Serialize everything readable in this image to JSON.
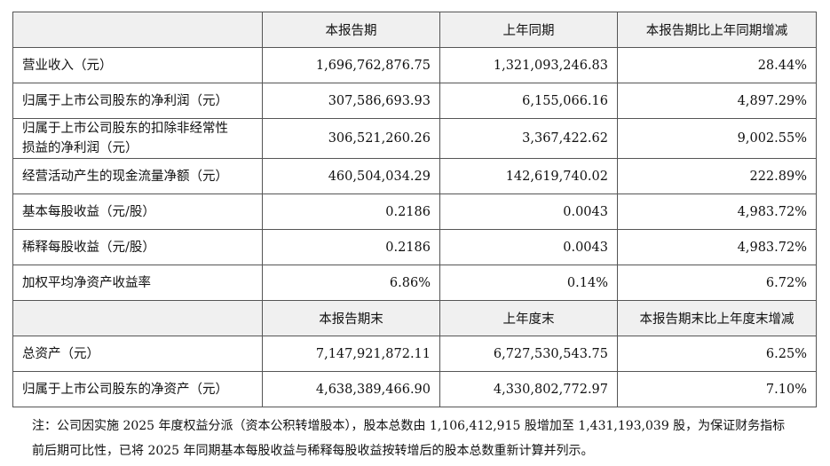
{
  "table": {
    "header": [
      "本报告期",
      "上年同期",
      "本报告期比上年同期增减"
    ],
    "rows": [
      [
        "营业收入（元）",
        "1,696,762,876.75",
        "1,321,093,246.83",
        "28.44%"
      ],
      [
        "归属于上市公司股东的净利润（元）",
        "307,586,693.93",
        "6,155,066.16",
        "4,897.29%"
      ],
      [
        "归属于上市公司股东的扣除非经常性损益的净利润（元）",
        "306,521,260.26",
        "3,367,422.62",
        "9,002.55%"
      ],
      [
        "经营活动产生的现金流量净额（元）",
        "460,504,034.29",
        "142,619,740.02",
        "222.89%"
      ],
      [
        "基本每股收益（元/股）",
        "0.2186",
        "0.0043",
        "4,983.72%"
      ],
      [
        "稀释每股收益（元/股）",
        "0.2186",
        "0.0043",
        "4,983.72%"
      ],
      [
        "加权平均净资产收益率",
        "6.86%",
        "0.14%",
        "6.72%"
      ]
    ],
    "header2": [
      "本报告期末",
      "上年度末",
      "本报告期末比上年度末增减"
    ],
    "rows2": [
      [
        "总资产（元）",
        "7,147,921,872.11",
        "6,727,530,543.75",
        "6.25%"
      ],
      [
        "归属于上市公司股东的净资产（元）",
        "4,638,389,466.90",
        "4,330,802,772.97",
        "7.10%"
      ]
    ]
  },
  "note": "注：公司因实施 2025 年度权益分派（资本公积转增股本），股本总数由 1,106,412,915 股增加至 1,431,193,039 股，为保证财务指标前后期可比性，已将 2025 年同期基本每股收益与稀释每股收益按转增后的股本总数重新计算并列示。"
}
